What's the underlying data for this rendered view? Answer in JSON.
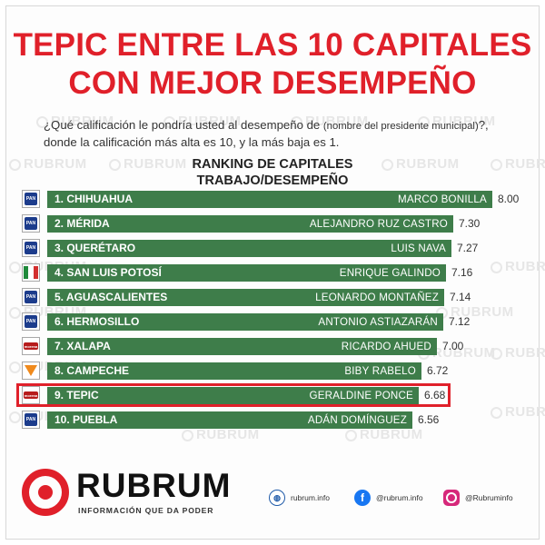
{
  "header": {
    "title_line1": "TEPIC ENTRE LAS 10 CAPITALES",
    "title_line2": "CON MEJOR DESEMPEÑO",
    "question_part1": "¿Qué calificación le pondría usted al desempeño de ",
    "question_small": "(nombre del presidente municipal)",
    "question_part2": "?, donde la calificación más alta es 10, y la más baja es 1."
  },
  "chart_data": {
    "type": "bar",
    "orientation": "horizontal",
    "title": "RANKING DE CAPITALES",
    "subtitle": "TRABAJO/DESEMPEÑO",
    "bar_color": "#3e7d4a",
    "highlight_color": "#e0202a",
    "highlight_index": 8,
    "rows": [
      {
        "rank_label": "1. CHIHUAHUA",
        "person": "MARCO BONILLA",
        "value": 8.0,
        "value_label": "8.00",
        "party": "pan"
      },
      {
        "rank_label": "2. MÉRIDA",
        "person": "ALEJANDRO RUZ CASTRO",
        "value": 7.3,
        "value_label": "7.30",
        "party": "pan"
      },
      {
        "rank_label": "3. QUERÉTARO",
        "person": "LUIS NAVA",
        "value": 7.27,
        "value_label": "7.27",
        "party": "pan"
      },
      {
        "rank_label": "4. SAN LUIS POTOSÍ",
        "person": "ENRIQUE GALINDO",
        "value": 7.16,
        "value_label": "7.16",
        "party": "pri"
      },
      {
        "rank_label": "5. AGUASCALIENTES",
        "person": "LEONARDO MONTAÑEZ",
        "value": 7.14,
        "value_label": "7.14",
        "party": "pan"
      },
      {
        "rank_label": "6. HERMOSILLO",
        "person": "ANTONIO ASTIAZARÁN",
        "value": 7.12,
        "value_label": "7.12",
        "party": "pan"
      },
      {
        "rank_label": "7. XALAPA",
        "person": "RICARDO AHUED",
        "value": 7.0,
        "value_label": "7.00",
        "party": "morena"
      },
      {
        "rank_label": "8. CAMPECHE",
        "person": "BIBY RABELO",
        "value": 6.72,
        "value_label": "6.72",
        "party": "mc"
      },
      {
        "rank_label": "9. TEPIC",
        "person": "GERALDINE PONCE",
        "value": 6.68,
        "value_label": "6.68",
        "party": "morena"
      },
      {
        "rank_label": "10. PUEBLA",
        "person": "ADÁN DOMÍNGUEZ",
        "value": 6.56,
        "value_label": "6.56",
        "party": "pan"
      }
    ]
  },
  "logos": {
    "pan_text": "PAN",
    "morena_text": "morena"
  },
  "watermark": "RUBRUM",
  "footer": {
    "brand": "RUBRUM",
    "tagline": "INFORMACIÓN QUE DA PODER",
    "website": "rubrum.info",
    "facebook": "@rubrum.info",
    "instagram": "@Rubruminfo",
    "icons": [
      "globe-icon",
      "facebook-icon",
      "instagram-icon"
    ]
  }
}
